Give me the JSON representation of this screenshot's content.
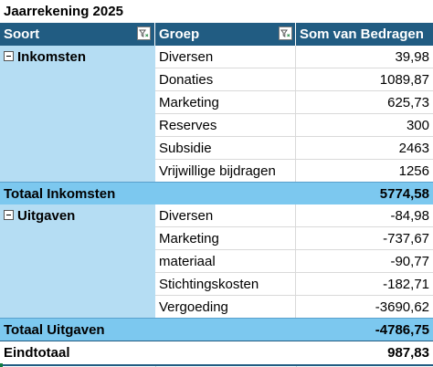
{
  "title": "Jaarrekening 2025",
  "headers": {
    "soort": "Soort",
    "groep": "Groep",
    "bedrag": "Som van Bedragen"
  },
  "inkomsten": {
    "label": "Inkomsten",
    "items": [
      {
        "groep": "Diversen",
        "bedrag": "39,98"
      },
      {
        "groep": "Donaties",
        "bedrag": "1089,87"
      },
      {
        "groep": "Marketing",
        "bedrag": "625,73"
      },
      {
        "groep": "Reserves",
        "bedrag": "300"
      },
      {
        "groep": "Subsidie",
        "bedrag": "2463"
      },
      {
        "groep": "Vrijwillige bijdragen",
        "bedrag": "1256"
      }
    ],
    "total_label": "Totaal Inkomsten",
    "total": "5774,58"
  },
  "uitgaven": {
    "label": "Uitgaven",
    "items": [
      {
        "groep": "Diversen",
        "bedrag": "-84,98"
      },
      {
        "groep": "Marketing",
        "bedrag": "-737,67"
      },
      {
        "groep": "materiaal",
        "bedrag": "-90,77"
      },
      {
        "groep": "Stichtingskosten",
        "bedrag": "-182,71"
      },
      {
        "groep": "Vergoeding",
        "bedrag": "-3690,62"
      }
    ],
    "total_label": "Totaal Uitgaven",
    "total": "-4786,75"
  },
  "grand_total": {
    "label": "Eindtotaal",
    "value": "987,83"
  },
  "colors": {
    "header": "#215c82",
    "group_fill": "#b5ddf3",
    "subtotal_fill": "#7cc8ef"
  },
  "icons": {
    "filter": "filter-icon",
    "collapse": "collapse-minus-icon"
  }
}
